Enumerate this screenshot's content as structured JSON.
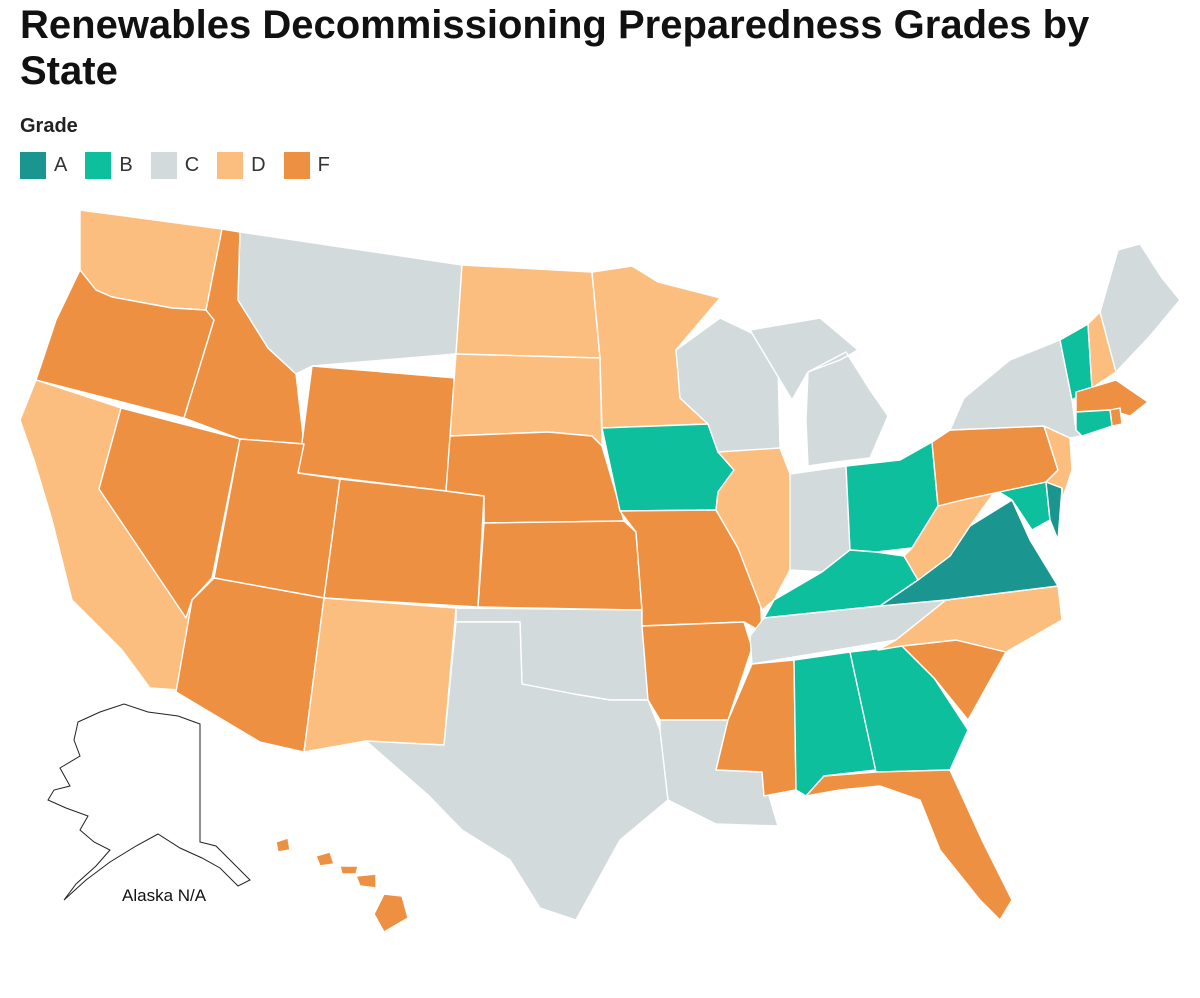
{
  "title": "Renewables Decommissioning Preparedness Grades by State",
  "legend": {
    "title": "Grade",
    "items": [
      {
        "grade": "A",
        "label": "A",
        "color": "#1a9590"
      },
      {
        "grade": "B",
        "label": "B",
        "color": "#0ebf9e"
      },
      {
        "grade": "C",
        "label": "C",
        "color": "#d3dadb"
      },
      {
        "grade": "D",
        "label": "D",
        "color": "#fbbe7e"
      },
      {
        "grade": "F",
        "label": "F",
        "color": "#ee9042"
      }
    ]
  },
  "alaska_label": "Alaska N/A",
  "grades": {
    "WA": "D",
    "OR": "F",
    "CA": "D",
    "NV": "F",
    "ID": "F",
    "MT": "C",
    "WY": "F",
    "UT": "F",
    "AZ": "F",
    "CO": "F",
    "NM": "D",
    "ND": "D",
    "SD": "D",
    "NE": "F",
    "KS": "F",
    "OK": "C",
    "TX": "C",
    "MN": "D",
    "IA": "B",
    "MO": "F",
    "AR": "F",
    "LA": "C",
    "WI": "C",
    "IL": "D",
    "MI": "C",
    "IN": "C",
    "OH": "B",
    "KY": "B",
    "TN": "C",
    "MS": "F",
    "AL": "B",
    "GA": "B",
    "FL": "F",
    "SC": "F",
    "NC": "D",
    "VA": "A",
    "WV": "D",
    "PA": "F",
    "NY": "C",
    "VT": "B",
    "NH": "D",
    "ME": "C",
    "MA": "F",
    "RI": "F",
    "CT": "B",
    "NJ": "D",
    "DE": "A",
    "MD": "B",
    "HI": "F",
    "AK": "N/A"
  }
}
